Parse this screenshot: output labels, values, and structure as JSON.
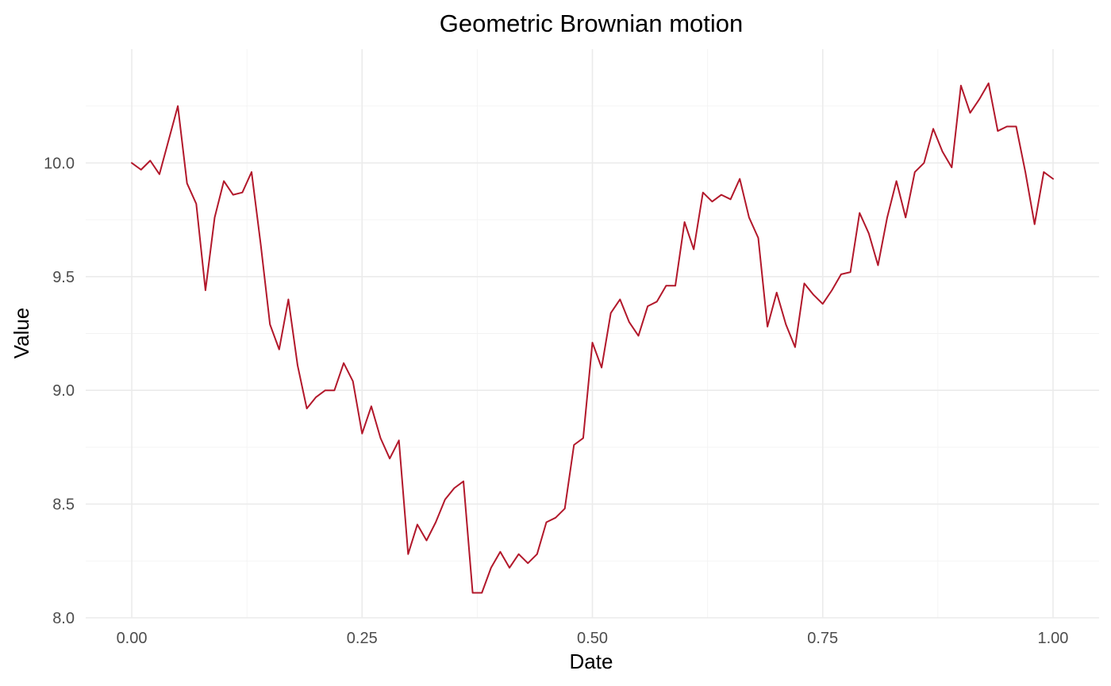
{
  "chart_data": {
    "type": "line",
    "title": "Geometric Brownian motion",
    "xlabel": "Date",
    "ylabel": "Value",
    "xlim": [
      -0.05,
      1.05
    ],
    "ylim": [
      8.0,
      10.5
    ],
    "x_major_ticks": [
      0.0,
      0.25,
      0.5,
      0.75,
      1.0
    ],
    "x_tick_labels": [
      "0.00",
      "0.25",
      "0.50",
      "0.75",
      "1.00"
    ],
    "y_major_ticks": [
      8.0,
      8.5,
      9.0,
      9.5,
      10.0
    ],
    "y_tick_labels": [
      "8.0",
      "8.5",
      "9.0",
      "9.5",
      "10.0"
    ],
    "grid": true,
    "legend": "none",
    "line_color": "#b2182b",
    "series": [
      {
        "x": [
          0.0,
          0.01,
          0.02,
          0.03,
          0.04,
          0.05,
          0.06,
          0.07,
          0.08,
          0.09,
          0.1,
          0.11,
          0.12,
          0.13,
          0.14,
          0.15,
          0.16,
          0.17,
          0.18,
          0.19,
          0.2,
          0.21,
          0.22,
          0.23,
          0.24,
          0.25,
          0.26,
          0.27,
          0.28,
          0.29,
          0.3,
          0.31,
          0.32,
          0.33,
          0.34,
          0.35,
          0.36,
          0.37,
          0.38,
          0.39,
          0.4,
          0.41,
          0.42,
          0.43,
          0.44,
          0.45,
          0.46,
          0.47,
          0.48,
          0.49,
          0.5,
          0.51,
          0.52,
          0.53,
          0.54,
          0.55,
          0.56,
          0.57,
          0.58,
          0.59,
          0.6,
          0.61,
          0.62,
          0.63,
          0.64,
          0.65,
          0.66,
          0.67,
          0.68,
          0.69,
          0.7,
          0.71,
          0.72,
          0.73,
          0.74,
          0.75,
          0.76,
          0.77,
          0.78,
          0.79,
          0.8,
          0.81,
          0.82,
          0.83,
          0.84,
          0.85,
          0.86,
          0.87,
          0.88,
          0.89,
          0.9,
          0.91,
          0.92,
          0.93,
          0.94,
          0.95,
          0.96,
          0.97,
          0.98,
          0.99,
          1.0
        ],
        "y": [
          10.0,
          9.97,
          10.01,
          9.95,
          10.1,
          10.25,
          9.91,
          9.82,
          9.44,
          9.76,
          9.92,
          9.86,
          9.87,
          9.96,
          9.64,
          9.29,
          9.18,
          9.4,
          9.11,
          8.92,
          8.97,
          9.0,
          9.0,
          9.12,
          9.04,
          8.81,
          8.93,
          8.79,
          8.7,
          8.78,
          8.28,
          8.41,
          8.34,
          8.42,
          8.52,
          8.57,
          8.6,
          8.11,
          8.11,
          8.22,
          8.29,
          8.22,
          8.28,
          8.24,
          8.28,
          8.42,
          8.44,
          8.48,
          8.76,
          8.79,
          9.21,
          9.1,
          9.34,
          9.4,
          9.3,
          9.24,
          9.37,
          9.39,
          9.46,
          9.46,
          9.74,
          9.62,
          9.87,
          9.83,
          9.86,
          9.84,
          9.93,
          9.76,
          9.67,
          9.28,
          9.43,
          9.29,
          9.19,
          9.47,
          9.42,
          9.38,
          9.44,
          9.51,
          9.52,
          9.78,
          9.69,
          9.55,
          9.76,
          9.92,
          9.76,
          9.96,
          10.0,
          10.15,
          10.05,
          9.98,
          10.34,
          10.22,
          10.28,
          10.35,
          10.14,
          10.16,
          10.16,
          9.96,
          9.73,
          9.96,
          9.93
        ]
      }
    ]
  }
}
